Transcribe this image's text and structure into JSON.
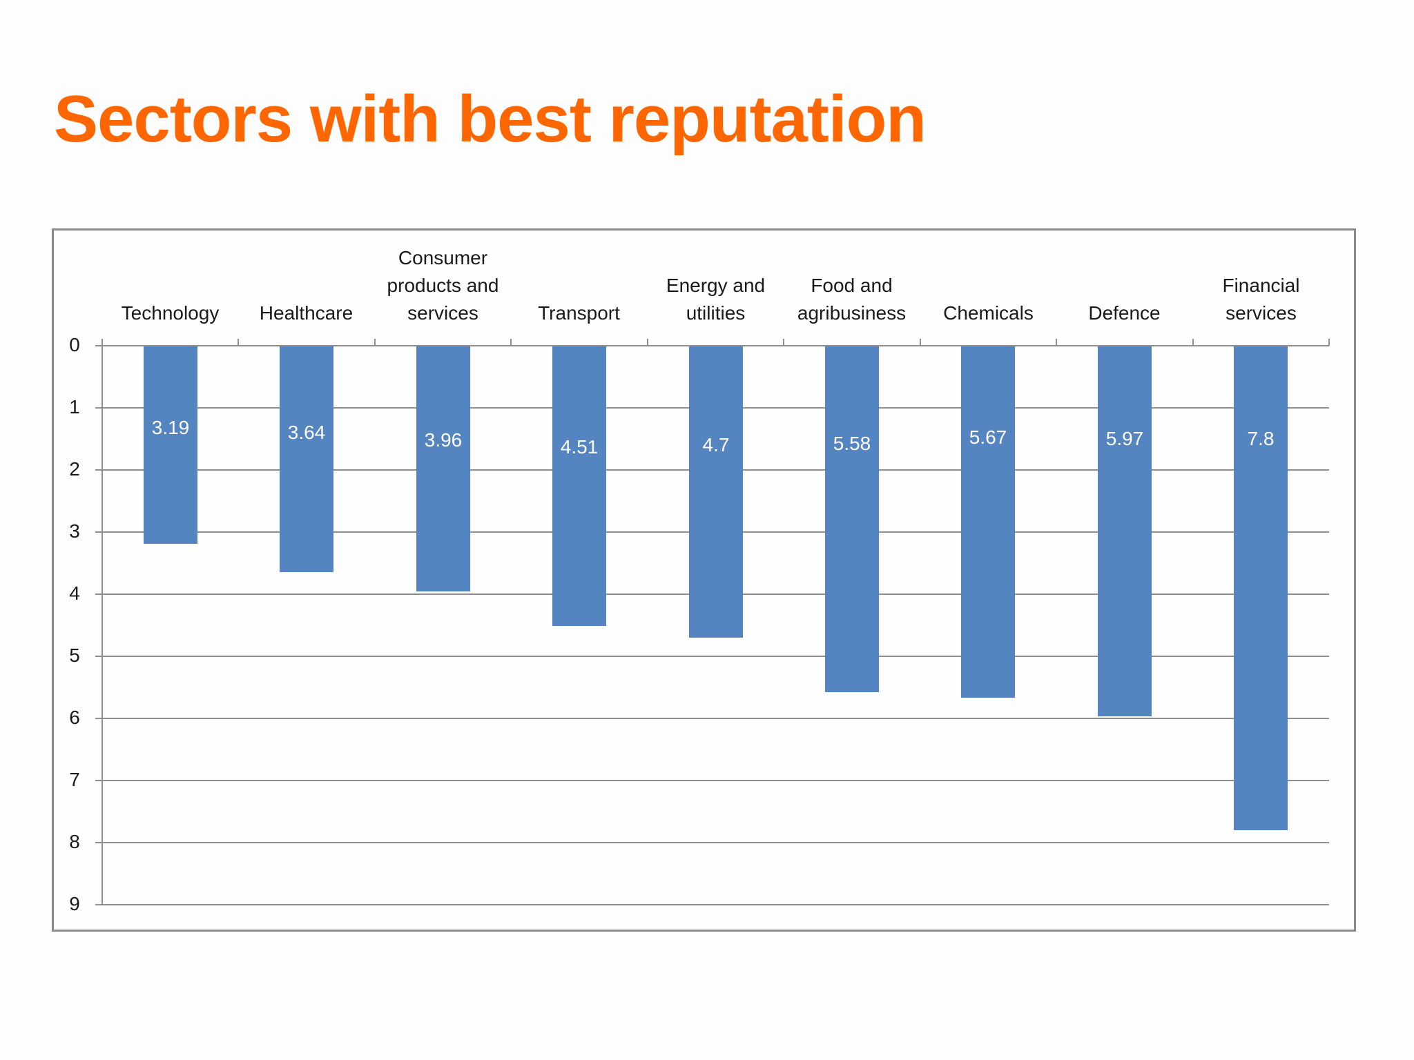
{
  "slide": {
    "title": "Sectors with best reputation",
    "title_color": "#ff6600"
  },
  "chart_data": {
    "type": "bar",
    "orientation": "vertical-reversed-axis",
    "title": "",
    "xlabel": "",
    "ylabel": "",
    "categories": [
      "Technology",
      "Healthcare",
      "Consumer products and services",
      "Transport",
      "Energy and utilities",
      "Food and agribusiness",
      "Chemicals",
      "Defence",
      "Financial services"
    ],
    "category_label_lines": [
      [
        "Technology"
      ],
      [
        "Healthcare"
      ],
      [
        "Consumer",
        "products and",
        "services"
      ],
      [
        "Transport"
      ],
      [
        "Energy and",
        "utilities"
      ],
      [
        "Food and",
        "agribusiness"
      ],
      [
        "Chemicals"
      ],
      [
        "Defence"
      ],
      [
        "Financial",
        "services"
      ]
    ],
    "values": [
      3.19,
      3.64,
      3.96,
      4.51,
      4.7,
      5.58,
      5.67,
      5.97,
      7.8
    ],
    "value_labels": [
      "3.19",
      "3.64",
      "3.96",
      "4.51",
      "4.7",
      "5.58",
      "5.67",
      "5.97",
      "7.8"
    ],
    "ylim": [
      0,
      9
    ],
    "y_reversed": true,
    "y_ticks": [
      "0",
      "1",
      "2",
      "3",
      "4",
      "5",
      "6",
      "7",
      "8",
      "9"
    ],
    "x_axis_position": "top",
    "grid": true,
    "legend": null,
    "bar_color": "#5585c0",
    "gridline_color": "#8e8e8e"
  }
}
